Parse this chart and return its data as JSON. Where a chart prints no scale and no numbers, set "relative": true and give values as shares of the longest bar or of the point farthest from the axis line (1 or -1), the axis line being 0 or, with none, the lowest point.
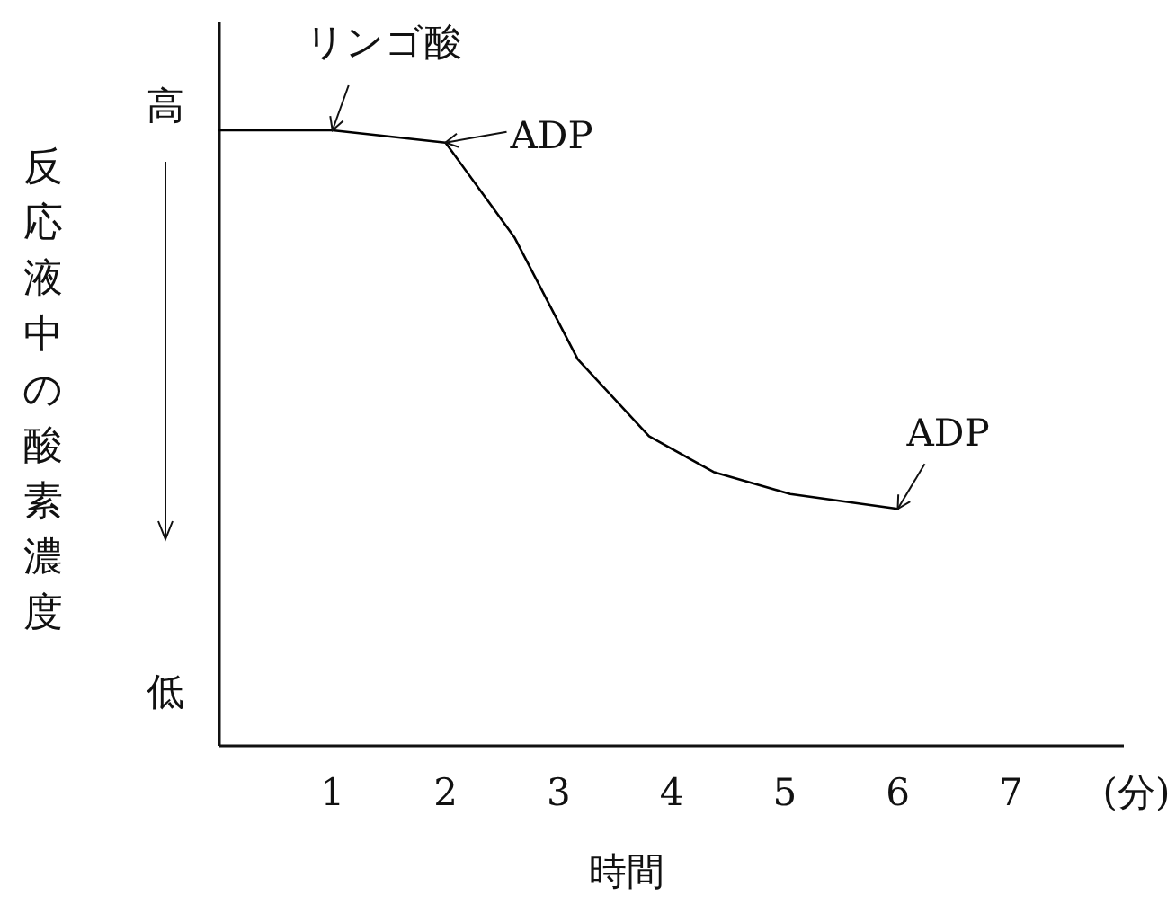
{
  "chart_data": {
    "type": "line",
    "relative": true,
    "xlabel": "時間",
    "ylabel": "反応液中の酸素濃度",
    "x": [
      0,
      1,
      2,
      2.61,
      3.17,
      3.8,
      4.37,
      5.05,
      6
    ],
    "series": [
      {
        "color": "#000000",
        "values": [
          1,
          1,
          0.98,
          0.826,
          0.628,
          0.503,
          0.445,
          0.409,
          0.385
        ]
      }
    ],
    "xlim": [
      0,
      8
    ],
    "xticks": [
      1,
      2,
      3,
      4,
      5,
      6,
      7
    ],
    "annotations": [
      "高",
      "低",
      "(分)",
      {
        "text": "リンゴ酸",
        "x": 1,
        "y": 1
      },
      {
        "text": "ADP",
        "x": 2,
        "y": 0.98
      },
      {
        "text": "ADP",
        "x": 6,
        "y": 0.385
      }
    ]
  }
}
